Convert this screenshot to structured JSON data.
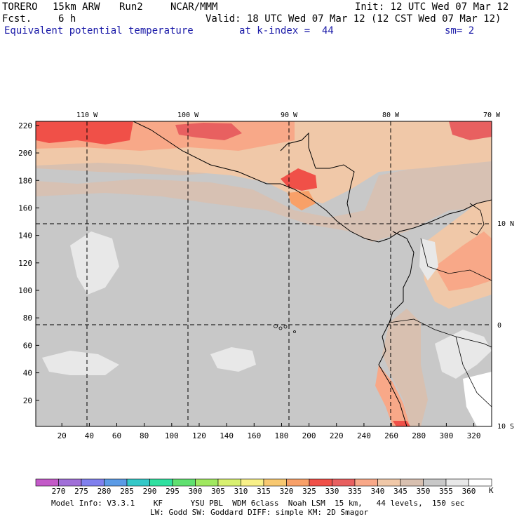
{
  "header": {
    "model": "TORERO",
    "resolution": "15km ARW",
    "run": "Run2",
    "org": "NCAR/MMM",
    "init": "Init: 12 UTC Wed 07 Mar 12",
    "fcst_label": "Fcst.",
    "fcst_value": "6 h",
    "valid": "Valid: 18 UTC Wed 07 Mar 12 (12 CST Wed 07 Mar 12)",
    "field": "Equivalent potential temperature",
    "level": "at k-index =  44",
    "smoothing": "sm= 2"
  },
  "map": {
    "x_ticks": [
      "20",
      "40",
      "60",
      "80",
      "100",
      "120",
      "140",
      "160",
      "180",
      "200",
      "220",
      "240",
      "260",
      "280",
      "300",
      "320"
    ],
    "y_ticks": [
      "20",
      "40",
      "60",
      "80",
      "100",
      "120",
      "140",
      "160",
      "180",
      "200",
      "220"
    ],
    "lon_labels": [
      "110 W",
      "100 W",
      "90 W",
      "80 W",
      "70 W"
    ],
    "lat_labels": [
      "10 N",
      "0",
      "10 S"
    ]
  },
  "colorbar": {
    "labels": [
      "270",
      "275",
      "280",
      "285",
      "290",
      "295",
      "300",
      "305",
      "310",
      "315",
      "320",
      "325",
      "330",
      "335",
      "340",
      "345",
      "350",
      "355",
      "360"
    ],
    "unit": "K",
    "colors": [
      "#c35ac8",
      "#a06fd8",
      "#8080ee",
      "#5b9be6",
      "#34c8c8",
      "#30e0a0",
      "#60e070",
      "#a0e860",
      "#d8f070",
      "#f8f088",
      "#f8c870",
      "#f8a068",
      "#f05048",
      "#e86060",
      "#f8a888",
      "#f0c8a8",
      "#d8c0b0",
      "#c8c8c8",
      "#e8e8e8",
      "#ffffff"
    ]
  },
  "footer": {
    "line1": "Model Info: V3.3.1    KF      YSU PBL  WDM 6class  Noah LSM  15 km,   44 levels,  150 sec",
    "line2": "LW: Godd SW: Goddard DIFF: simple KM: 2D Smagor"
  }
}
